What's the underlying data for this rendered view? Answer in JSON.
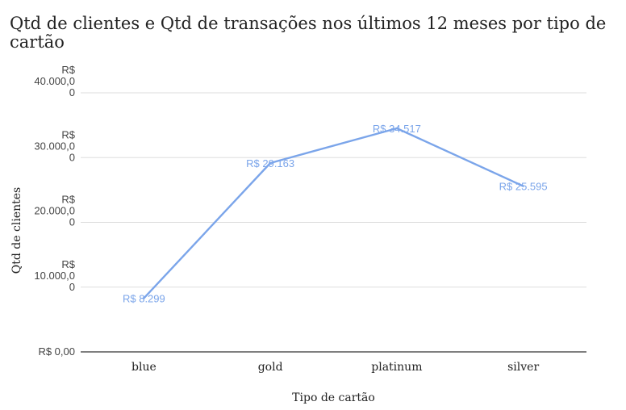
{
  "chart_data": {
    "type": "line",
    "title": "Qtd de clientes e Qtd de transações nos últimos 12 meses por tipo de cartão",
    "xlabel": "Tipo de cartão",
    "ylabel": "Qtd de clientes",
    "categories": [
      "blue",
      "gold",
      "platinum",
      "silver"
    ],
    "series": [
      {
        "values": [
          8299,
          29163,
          34517,
          25595
        ],
        "data_labels": [
          "R$ 8.299",
          "R$ 29.163",
          "R$ 34.517",
          "R$ 25.595"
        ]
      }
    ],
    "ylim": [
      0,
      40000
    ],
    "yticks": [
      0,
      10000,
      20000,
      30000,
      40000
    ],
    "ytick_labels": [
      [
        "R$ 0,00"
      ],
      [
        "R$",
        "10.000,0",
        "0"
      ],
      [
        "R$",
        "20.000,0",
        "0"
      ],
      [
        "R$",
        "30.000,0",
        "0"
      ],
      [
        "R$",
        "40.000,0",
        "0"
      ]
    ],
    "grid": true,
    "legend": "none",
    "line_color": "#7ba5ea",
    "grid_color": "#dddddd",
    "axis_color": "#333333"
  }
}
